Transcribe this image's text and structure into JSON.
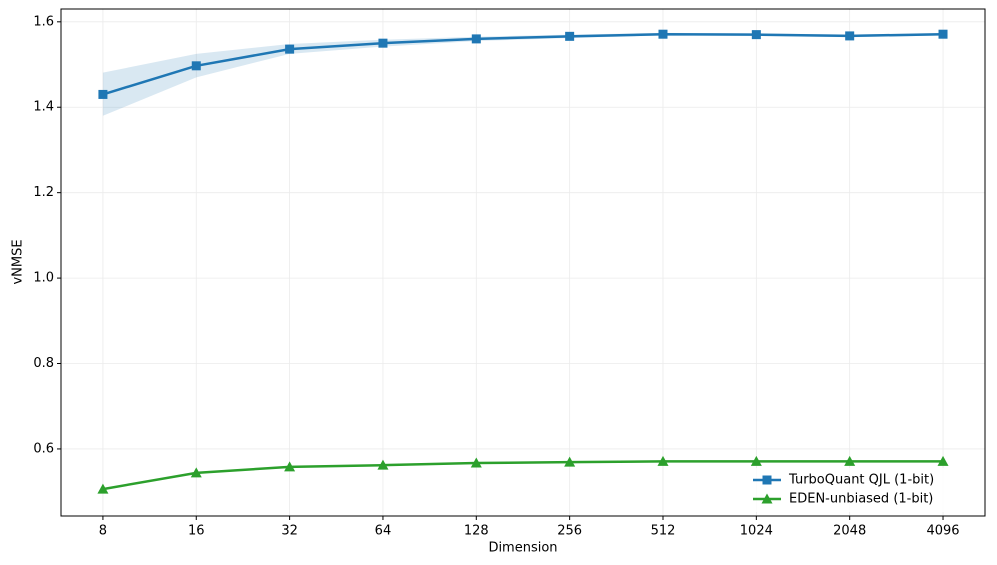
{
  "chart_data": {
    "type": "line",
    "x_label": "Dimension",
    "y_label": "vNMSE",
    "x": [
      8,
      16,
      32,
      64,
      128,
      256,
      512,
      1024,
      2048,
      4096
    ],
    "x_log_base": 2,
    "xlim": [
      5.86,
      5594
    ],
    "xticks": [
      8,
      16,
      32,
      64,
      128,
      256,
      512,
      1024,
      2048,
      4096
    ],
    "ylim": [
      0.443,
      1.63
    ],
    "yticks": [
      0.6,
      0.8,
      {
        "value": 1,
        "label": "1.0"
      },
      1.2,
      1.4,
      1.6
    ],
    "grid": true,
    "legend": "lower right",
    "series": [
      {
        "name": "TurboQuant QJL (1-bit)",
        "color": "#1f77b4",
        "marker": "square",
        "values": [
          1.43,
          1.497,
          1.536,
          1.55,
          1.56,
          1.566,
          1.571,
          1.57,
          1.567,
          1.571
        ],
        "lower": [
          1.38,
          1.47,
          1.525,
          1.542,
          1.555,
          1.562,
          1.568,
          1.567,
          1.564,
          1.568
        ],
        "upper": [
          1.481,
          1.525,
          1.548,
          1.558,
          1.565,
          1.57,
          1.574,
          1.573,
          1.57,
          1.574
        ]
      },
      {
        "name": "EDEN-unbiased (1-bit)",
        "color": "#2ca02c",
        "marker": "triangle",
        "values": [
          0.506,
          0.544,
          0.558,
          0.562,
          0.567,
          0.569,
          0.571,
          0.571,
          0.571,
          0.571
        ]
      }
    ]
  }
}
